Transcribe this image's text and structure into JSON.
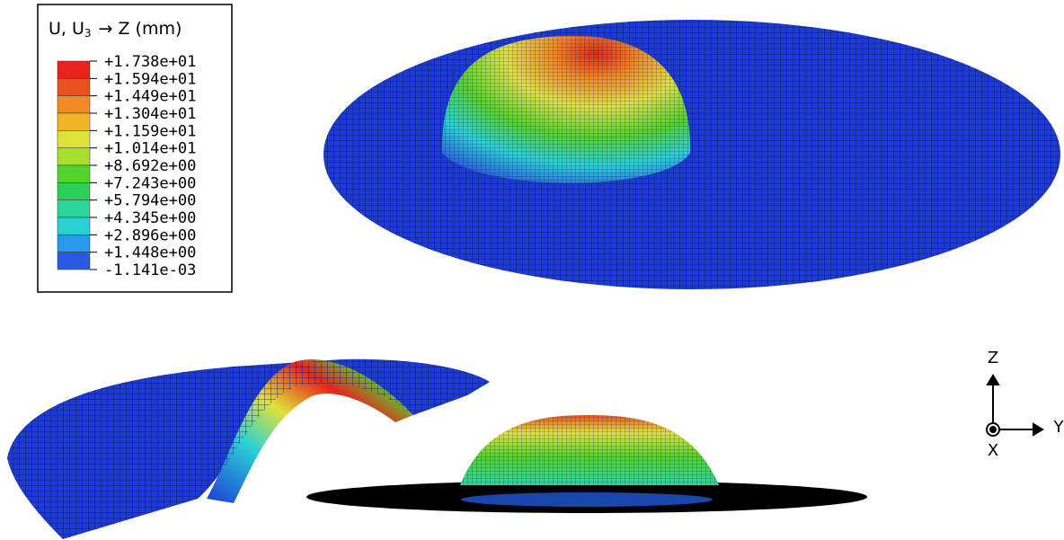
{
  "legend": {
    "title_main": "U, U",
    "title_sub": "3",
    "title_suffix": "→ Z (mm)",
    "labels": [
      "+1.738e+01",
      "+1.594e+01",
      "+1.449e+01",
      "+1.304e+01",
      "+1.159e+01",
      "+1.014e+01",
      "+8.692e+00",
      "+7.243e+00",
      "+5.794e+00",
      "+4.345e+00",
      "+2.896e+00",
      "+1.448e+00",
      "-1.141e-03"
    ],
    "colors": [
      "#e8231e",
      "#e8521e",
      "#f08a22",
      "#f2b52a",
      "#dfe23a",
      "#a8de2e",
      "#54d22e",
      "#2ccf5a",
      "#2ad69c",
      "#2ad0d6",
      "#2a9ae8",
      "#2a5ae0",
      "#1e3ad6"
    ]
  },
  "triad": {
    "z": "Z",
    "y": "Y",
    "x": "X"
  }
}
